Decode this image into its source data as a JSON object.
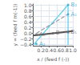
{
  "chart_data": {
    "type": "line",
    "xlabel": "x / (feed f (-))",
    "ylabel": "y = (feed f m(-1))",
    "xlim": [
      0.0,
      1.0
    ],
    "ylim": [
      -0.45,
      1.05
    ],
    "xticks": [
      0.2,
      0.4,
      0.6,
      0.8,
      {
        "value": 1.0,
        "label": "1.0"
      }
    ],
    "yticks": [
      {
        "value": -0.4,
        "label": "−0.4"
      },
      {
        "value": -0.2,
        "label": "−0.2"
      },
      {
        "value": 0.0,
        "label": "0.0"
      },
      0.2,
      0.4,
      0.6,
      0.8,
      {
        "value": 1.0,
        "label": "1.0"
      }
    ],
    "grid": true,
    "series": [
      {
        "type": "line",
        "x": [
          0.0,
          1.0
        ],
        "values": [
          -0.08,
          0.08
        ],
        "color": "#555555"
      },
      {
        "type": "line",
        "x": [
          0.0,
          0.88
        ],
        "values": [
          -0.42,
          1.02
        ],
        "color": "#55ccee"
      },
      {
        "type": "line",
        "x": [
          0.08,
          0.88
        ],
        "values": [
          0.0,
          0.68
        ],
        "color": "#999999",
        "line_style": "dashed"
      },
      {
        "type": "line",
        "x": [
          0.88,
          0.88
        ],
        "values": [
          -0.42,
          1.02
        ],
        "color": "#55ccee"
      }
    ],
    "annotations": [
      {
        "text": "A₀",
        "x": 0.08,
        "y": -0.05,
        "color": "#666666"
      },
      {
        "text": "B",
        "x": 0.5,
        "y": 0.0,
        "color": "#666666"
      },
      {
        "text": "B₁",
        "x": 0.88,
        "y": 0.04,
        "color": "#666666"
      },
      {
        "text": "A₂",
        "x": 0.08,
        "y": -0.38,
        "color": "#33aacc"
      },
      {
        "text": "A₁",
        "x": 0.88,
        "y": 0.68,
        "color": "#33aacc"
      },
      {
        "text": "B₂",
        "x": 0.88,
        "y": 1.02,
        "color": "#33aacc"
      }
    ]
  }
}
